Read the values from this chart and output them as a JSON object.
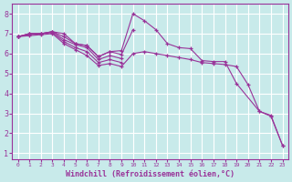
{
  "bg_color": "#c8eaea",
  "grid_color": "#ffffff",
  "line_color": "#993399",
  "xlabel": "Windchill (Refroidissement éolien,°C)",
  "ylim": [
    0.7,
    8.5
  ],
  "xlim": [
    -0.5,
    23.5
  ],
  "yticks": [
    1,
    2,
    3,
    4,
    5,
    6,
    7,
    8
  ],
  "xticks": [
    0,
    1,
    2,
    3,
    4,
    5,
    6,
    7,
    8,
    9,
    10,
    11,
    12,
    13,
    14,
    15,
    16,
    17,
    18,
    19,
    20,
    21,
    22,
    23
  ],
  "lines": [
    {
      "x": [
        0,
        1,
        2,
        3,
        4,
        5,
        6,
        7,
        8,
        9,
        10,
        11,
        12,
        13,
        14,
        15,
        16,
        17,
        18,
        19,
        21,
        22,
        23
      ],
      "y": [
        6.85,
        7.0,
        7.0,
        7.1,
        7.0,
        6.5,
        6.4,
        5.85,
        6.1,
        6.15,
        8.0,
        7.65,
        7.2,
        6.5,
        6.3,
        6.25,
        5.65,
        5.6,
        5.6,
        4.5,
        3.1,
        2.9,
        1.4
      ]
    },
    {
      "x": [
        0,
        1,
        2,
        3,
        4,
        5,
        6,
        7,
        8,
        9,
        10
      ],
      "y": [
        6.85,
        7.0,
        7.0,
        7.1,
        6.85,
        6.5,
        6.4,
        5.85,
        6.1,
        5.95,
        7.2
      ]
    },
    {
      "x": [
        0,
        1,
        2,
        3,
        4,
        5,
        6,
        7,
        8,
        9
      ],
      "y": [
        6.85,
        7.0,
        7.0,
        7.1,
        6.7,
        6.45,
        6.3,
        5.7,
        5.9,
        5.75
      ]
    },
    {
      "x": [
        0,
        1,
        2,
        3,
        4,
        5,
        6,
        7,
        8,
        9
      ],
      "y": [
        6.85,
        6.95,
        7.0,
        7.05,
        6.6,
        6.3,
        6.1,
        5.55,
        5.7,
        5.55
      ]
    },
    {
      "x": [
        0,
        1,
        2,
        3,
        4,
        5,
        6,
        7,
        8,
        9,
        10,
        11,
        12,
        13,
        14,
        15,
        16,
        17,
        18,
        19,
        20,
        21,
        22,
        23
      ],
      "y": [
        6.85,
        6.9,
        6.95,
        7.0,
        6.5,
        6.2,
        5.9,
        5.4,
        5.5,
        5.35,
        6.0,
        6.1,
        6.0,
        5.9,
        5.8,
        5.7,
        5.55,
        5.5,
        5.45,
        5.35,
        4.45,
        3.1,
        2.85,
        1.4
      ]
    }
  ]
}
